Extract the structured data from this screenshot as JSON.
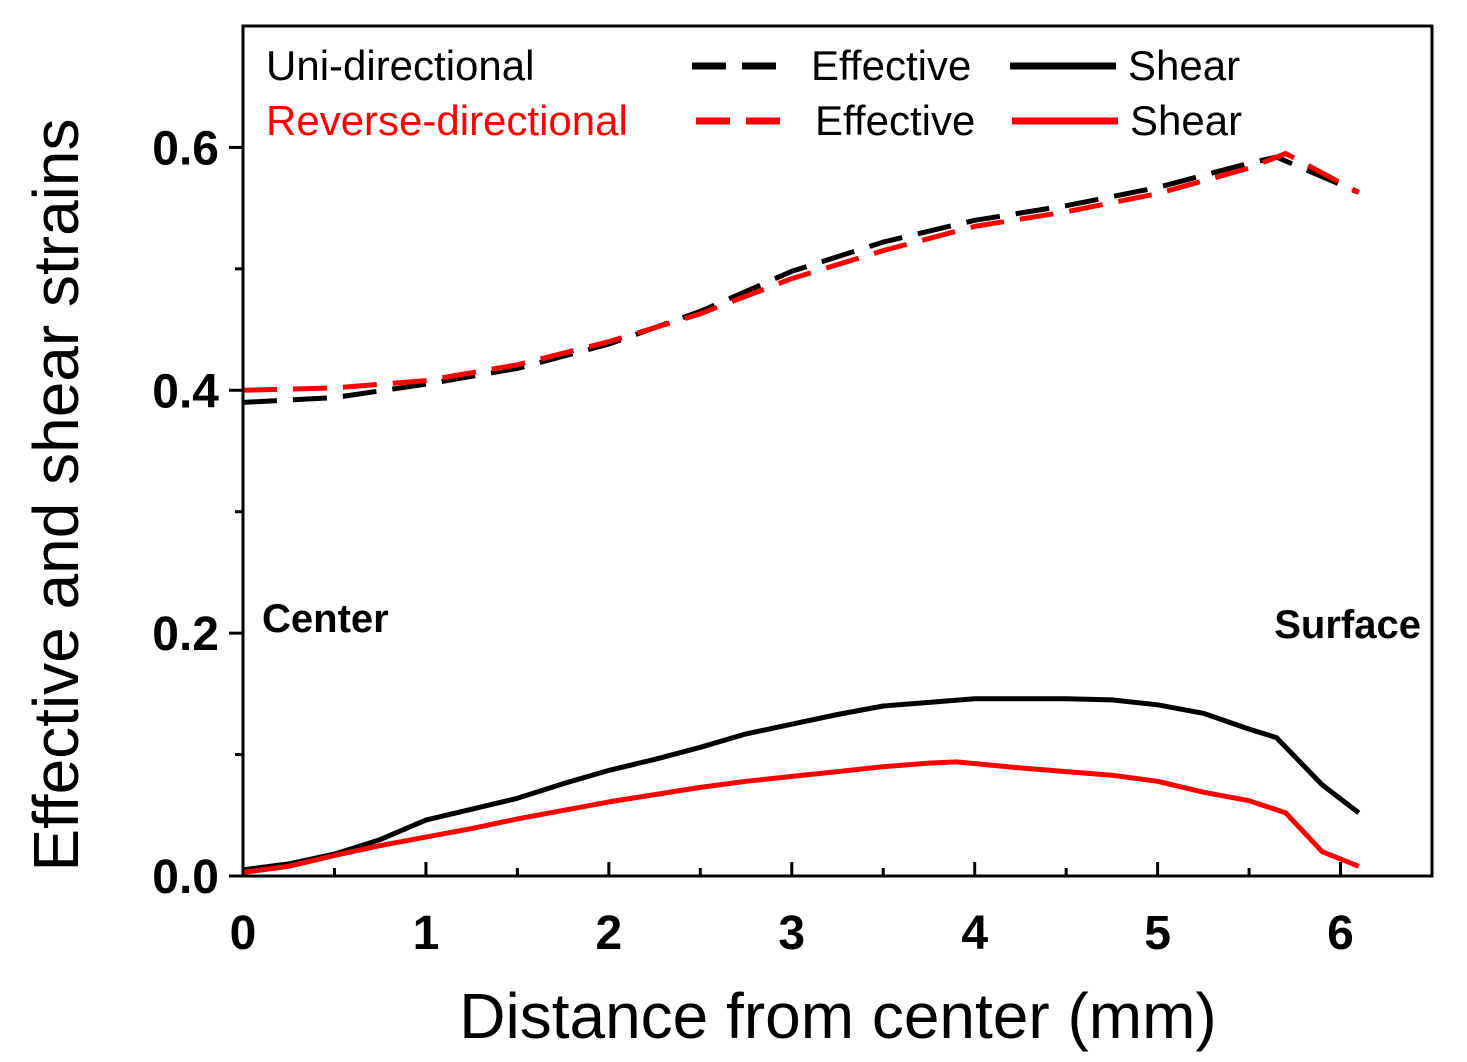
{
  "chart_data": {
    "type": "line",
    "title": "",
    "xlabel": "Distance from center (mm)",
    "ylabel": "Effective and shear strains",
    "xlim": [
      0,
      6.5
    ],
    "ylim": [
      0,
      0.7
    ],
    "x_ticks": [
      0,
      1,
      2,
      3,
      4,
      5,
      6
    ],
    "x_tick_labels": [
      "0",
      "1",
      "2",
      "3",
      "4",
      "5",
      "6"
    ],
    "y_ticks": [
      0.0,
      0.2,
      0.4,
      0.6
    ],
    "y_tick_labels": [
      "0.0",
      "0.2",
      "0.4",
      "0.6"
    ],
    "grid": false,
    "legend_position": "top",
    "legend": {
      "groups": [
        {
          "name": "Uni-directional",
          "color": "#000000"
        },
        {
          "name": "Reverse-directional",
          "color": "#ff0000"
        }
      ],
      "effective_label": "Effective",
      "shear_label": "Shear"
    },
    "annotations": [
      {
        "text": "Center",
        "anchor": "left"
      },
      {
        "text": "Surface",
        "anchor": "right"
      }
    ],
    "series": [
      {
        "name": "Uni-directional Effective",
        "group": "Uni-directional",
        "kind": "Effective",
        "color": "#000000",
        "dash": "dashed",
        "x": [
          0,
          0.5,
          1,
          1.5,
          2,
          2.5,
          3,
          3.5,
          4,
          4.5,
          5,
          5.5,
          5.65,
          6.1
        ],
        "y": [
          0.39,
          0.394,
          0.405,
          0.418,
          0.438,
          0.465,
          0.498,
          0.522,
          0.54,
          0.552,
          0.567,
          0.587,
          0.592,
          0.563
        ]
      },
      {
        "name": "Reverse-directional Effective",
        "group": "Reverse-directional",
        "kind": "Effective",
        "color": "#ff0000",
        "dash": "dashed",
        "x": [
          0,
          0.5,
          1,
          1.5,
          2,
          2.5,
          3,
          3.5,
          4,
          4.5,
          5,
          5.5,
          5.7,
          6.1
        ],
        "y": [
          0.4,
          0.402,
          0.408,
          0.421,
          0.44,
          0.463,
          0.492,
          0.515,
          0.535,
          0.547,
          0.562,
          0.583,
          0.595,
          0.563
        ]
      },
      {
        "name": "Uni-directional Shear",
        "group": "Uni-directional",
        "kind": "Shear",
        "color": "#000000",
        "dash": "solid",
        "x": [
          0,
          0.25,
          0.5,
          0.75,
          1,
          1.25,
          1.5,
          1.75,
          2,
          2.25,
          2.5,
          2.75,
          3,
          3.25,
          3.5,
          3.75,
          4,
          4.25,
          4.5,
          4.75,
          5,
          5.25,
          5.5,
          5.65,
          5.9,
          6.1
        ],
        "y": [
          0.005,
          0.01,
          0.018,
          0.03,
          0.046,
          0.055,
          0.064,
          0.076,
          0.087,
          0.096,
          0.106,
          0.117,
          0.125,
          0.133,
          0.14,
          0.143,
          0.146,
          0.146,
          0.146,
          0.145,
          0.141,
          0.134,
          0.121,
          0.114,
          0.075,
          0.052
        ]
      },
      {
        "name": "Reverse-directional Shear",
        "group": "Reverse-directional",
        "kind": "Shear",
        "color": "#ff0000",
        "dash": "solid",
        "x": [
          0,
          0.25,
          0.5,
          0.75,
          1,
          1.25,
          1.5,
          1.75,
          2,
          2.25,
          2.5,
          2.75,
          3,
          3.25,
          3.5,
          3.75,
          3.9,
          4.25,
          4.5,
          4.75,
          5,
          5.25,
          5.5,
          5.7,
          5.9,
          6.1
        ],
        "y": [
          0.003,
          0.008,
          0.017,
          0.025,
          0.032,
          0.039,
          0.047,
          0.054,
          0.061,
          0.067,
          0.073,
          0.078,
          0.082,
          0.086,
          0.09,
          0.093,
          0.094,
          0.089,
          0.086,
          0.083,
          0.078,
          0.069,
          0.062,
          0.052,
          0.02,
          0.008
        ]
      }
    ]
  }
}
